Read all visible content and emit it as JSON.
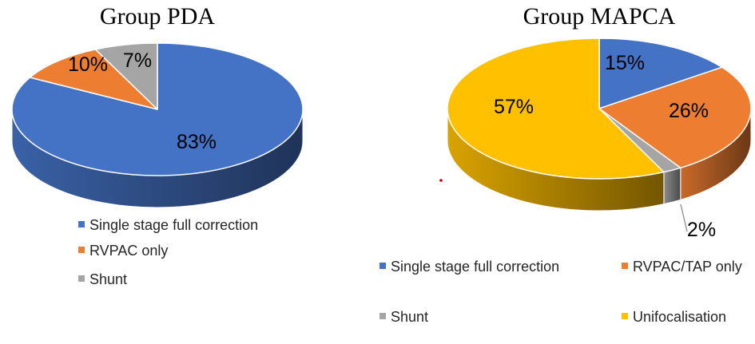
{
  "chart_data": [
    {
      "type": "pie",
      "title": "Group PDA",
      "slices": [
        {
          "label": "Single stage full correction",
          "value": 83,
          "display": "83%",
          "color": "#4472C4"
        },
        {
          "label": "RVPAC only",
          "value": 10,
          "display": "10%",
          "color": "#ED7D31"
        },
        {
          "label": "Shunt",
          "value": 7,
          "display": "7%",
          "color": "#A5A5A5"
        }
      ],
      "legend_position": "bottom"
    },
    {
      "type": "pie",
      "title": "Group MAPCA",
      "slices": [
        {
          "label": "Single stage full correction",
          "value": 15,
          "display": "15%",
          "color": "#4472C4"
        },
        {
          "label": "RVPAC/TAP only",
          "value": 26,
          "display": "26%",
          "color": "#ED7D31"
        },
        {
          "label": "Shunt",
          "value": 2,
          "display": "2%",
          "color": "#A5A5A5"
        },
        {
          "label": "Unifocalisation",
          "value": 57,
          "display": "57%",
          "color": "#FFC000"
        }
      ],
      "legend_position": "bottom"
    }
  ]
}
